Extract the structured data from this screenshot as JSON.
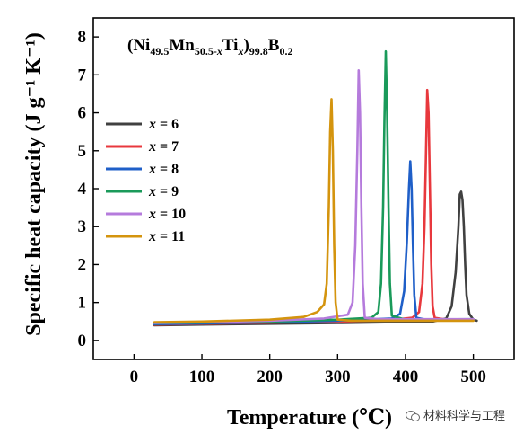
{
  "chart_data": {
    "type": "line",
    "title_parts": {
      "p1": "(Ni",
      "s1": "49.5",
      "p2": "Mn",
      "s2": "50.5-",
      "s2x": "x",
      "p3": "Ti",
      "s3x": "x",
      "p4": ")",
      "s4": "99.8",
      "p5": "B",
      "s5": "0.2"
    },
    "xlabel": "Temperature (℃)",
    "ylabel": "Specific heat capacity (J g⁻¹ K⁻¹)",
    "xlim": [
      -60,
      560
    ],
    "ylim": [
      -0.5,
      8.5
    ],
    "xticks": [
      0,
      100,
      200,
      300,
      400,
      500
    ],
    "yticks": [
      0,
      1,
      2,
      3,
      4,
      5,
      6,
      7,
      8
    ],
    "legend_position": "center-left",
    "series": [
      {
        "name": "x = 6",
        "var": "x",
        "eq": " = 6",
        "color": "#404040",
        "points": [
          [
            30,
            0.4
          ],
          [
            100,
            0.42
          ],
          [
            200,
            0.44
          ],
          [
            300,
            0.46
          ],
          [
            380,
            0.48
          ],
          [
            440,
            0.5
          ],
          [
            460,
            0.58
          ],
          [
            468,
            0.9
          ],
          [
            474,
            1.8
          ],
          [
            478,
            3.0
          ],
          [
            480,
            3.85
          ],
          [
            482,
            3.92
          ],
          [
            484,
            3.7
          ],
          [
            486,
            3.0
          ],
          [
            488,
            2.0
          ],
          [
            490,
            1.2
          ],
          [
            494,
            0.7
          ],
          [
            500,
            0.55
          ],
          [
            505,
            0.52
          ]
        ]
      },
      {
        "name": "x = 7",
        "var": "x",
        "eq": " = 7",
        "color": "#e8383d",
        "points": [
          [
            30,
            0.42
          ],
          [
            100,
            0.44
          ],
          [
            200,
            0.47
          ],
          [
            300,
            0.5
          ],
          [
            380,
            0.54
          ],
          [
            410,
            0.6
          ],
          [
            420,
            0.75
          ],
          [
            425,
            1.5
          ],
          [
            428,
            3.0
          ],
          [
            430,
            4.8
          ],
          [
            432,
            6.6
          ],
          [
            434,
            6.0
          ],
          [
            436,
            4.0
          ],
          [
            438,
            2.0
          ],
          [
            440,
            0.9
          ],
          [
            443,
            0.6
          ],
          [
            460,
            0.55
          ],
          [
            500,
            0.55
          ]
        ]
      },
      {
        "name": "x = 8",
        "var": "x",
        "eq": " = 8",
        "color": "#1f5fc8",
        "points": [
          [
            30,
            0.43
          ],
          [
            100,
            0.45
          ],
          [
            200,
            0.48
          ],
          [
            300,
            0.52
          ],
          [
            380,
            0.58
          ],
          [
            392,
            0.7
          ],
          [
            398,
            1.3
          ],
          [
            402,
            2.6
          ],
          [
            405,
            4.0
          ],
          [
            407,
            4.72
          ],
          [
            409,
            4.0
          ],
          [
            411,
            2.5
          ],
          [
            413,
            1.2
          ],
          [
            416,
            0.6
          ],
          [
            430,
            0.55
          ],
          [
            500,
            0.54
          ]
        ]
      },
      {
        "name": "x = 9",
        "var": "x",
        "eq": " = 9",
        "color": "#1a9a5a",
        "points": [
          [
            30,
            0.45
          ],
          [
            100,
            0.47
          ],
          [
            200,
            0.5
          ],
          [
            300,
            0.55
          ],
          [
            350,
            0.6
          ],
          [
            360,
            0.75
          ],
          [
            364,
            1.5
          ],
          [
            367,
            3.5
          ],
          [
            369,
            5.8
          ],
          [
            371,
            7.62
          ],
          [
            373,
            6.0
          ],
          [
            375,
            3.5
          ],
          [
            377,
            1.5
          ],
          [
            380,
            0.65
          ],
          [
            400,
            0.55
          ],
          [
            500,
            0.56
          ]
        ]
      },
      {
        "name": "x = 10",
        "var": "x",
        "eq": " = 10",
        "color": "#b57bdc",
        "points": [
          [
            30,
            0.46
          ],
          [
            100,
            0.48
          ],
          [
            200,
            0.52
          ],
          [
            280,
            0.58
          ],
          [
            315,
            0.68
          ],
          [
            322,
            1.0
          ],
          [
            326,
            2.5
          ],
          [
            329,
            5.0
          ],
          [
            331,
            7.12
          ],
          [
            333,
            6.0
          ],
          [
            335,
            3.5
          ],
          [
            337,
            1.5
          ],
          [
            340,
            0.6
          ],
          [
            360,
            0.56
          ],
          [
            500,
            0.56
          ]
        ]
      },
      {
        "name": "x = 11",
        "var": "x",
        "eq": " = 11",
        "color": "#d4940e",
        "points": [
          [
            30,
            0.48
          ],
          [
            100,
            0.5
          ],
          [
            200,
            0.55
          ],
          [
            250,
            0.62
          ],
          [
            270,
            0.75
          ],
          [
            280,
            0.95
          ],
          [
            284,
            1.5
          ],
          [
            287,
            3.5
          ],
          [
            289,
            5.5
          ],
          [
            291,
            6.36
          ],
          [
            293,
            5.0
          ],
          [
            295,
            2.5
          ],
          [
            297,
            1.0
          ],
          [
            300,
            0.55
          ],
          [
            320,
            0.52
          ],
          [
            500,
            0.52
          ]
        ]
      }
    ]
  },
  "watermark": {
    "text": "材料科学与工程"
  }
}
